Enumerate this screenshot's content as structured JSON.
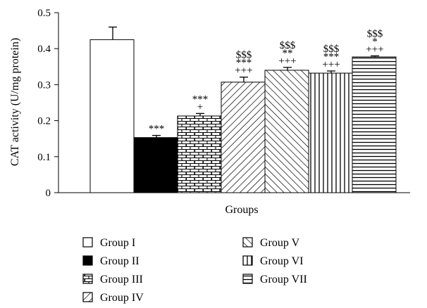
{
  "chart_data": {
    "type": "bar",
    "xlabel": "Groups",
    "ylabel": "CAT activity (U/mg protein)",
    "ylim": [
      0,
      0.5
    ],
    "yticks": [
      "0",
      "0.1",
      "0.2",
      "0.3",
      "0.4",
      "0.5"
    ],
    "grid": false,
    "legend_placement": "bottom",
    "bars": [
      {
        "name": "Group I",
        "value": 0.425,
        "error": 0.035,
        "pattern": "empty",
        "annotations": []
      },
      {
        "name": "Group II",
        "value": 0.153,
        "error": 0.006,
        "pattern": "solid",
        "annotations": [
          "***"
        ]
      },
      {
        "name": "Group III",
        "value": 0.213,
        "error": 0.007,
        "pattern": "brick",
        "annotations": [
          "***",
          "+"
        ]
      },
      {
        "name": "Group IV",
        "value": 0.307,
        "error": 0.014,
        "pattern": "diag-up",
        "annotations": [
          "$$$",
          "***",
          "+++"
        ]
      },
      {
        "name": "Group V",
        "value": 0.34,
        "error": 0.008,
        "pattern": "diag-down",
        "annotations": [
          "$$$",
          "**",
          "+++"
        ]
      },
      {
        "name": "Group VI",
        "value": 0.332,
        "error": 0.006,
        "pattern": "vertical",
        "annotations": [
          "$$$",
          "***",
          "+++"
        ]
      },
      {
        "name": "Group VII",
        "value": 0.377,
        "error": 0.003,
        "pattern": "horizontal",
        "annotations": [
          "$$$",
          "*",
          "+++"
        ]
      }
    ]
  }
}
